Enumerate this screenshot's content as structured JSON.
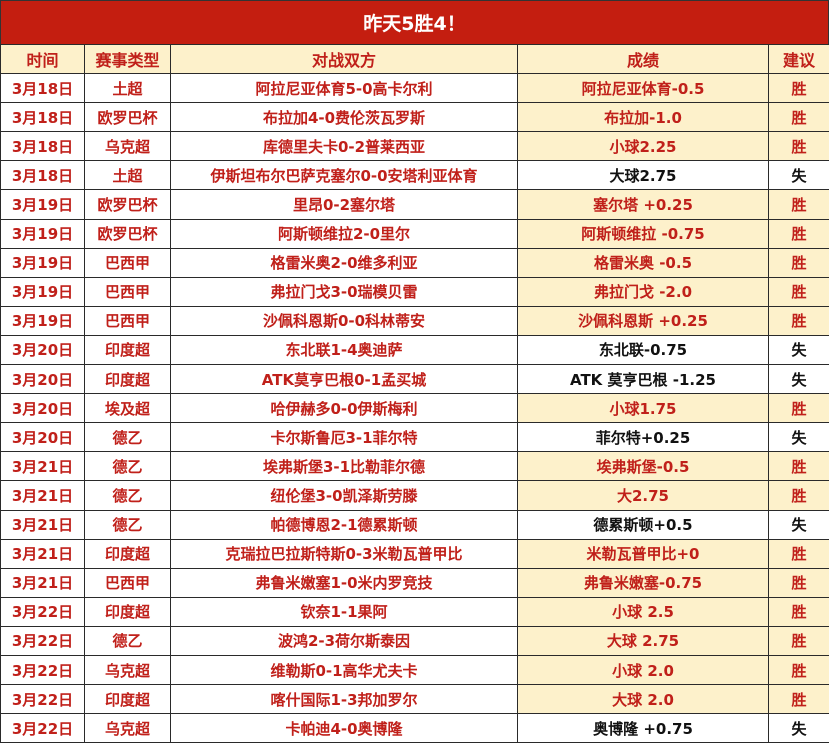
{
  "title": "昨天5胜4！",
  "colors": {
    "title_bg": "#c41e10",
    "header_bg": "#fdf1cb",
    "win_bg": "#fdf1cb",
    "text_red": "#c0201a",
    "loss_text": "#111111"
  },
  "headers": [
    "时间",
    "赛事类型",
    "对战双方",
    "成绩",
    "建议"
  ],
  "rows": [
    {
      "date": "3月18日",
      "league": "土超",
      "match": "阿拉尼亚体育5-0高卡尔利",
      "result": "阿拉尼亚体育-0.5",
      "verdict": "胜"
    },
    {
      "date": "3月18日",
      "league": "欧罗巴杯",
      "match": "布拉加4-0费伦茨瓦罗斯",
      "result": "布拉加-1.0",
      "verdict": "胜"
    },
    {
      "date": "3月18日",
      "league": "乌克超",
      "match": "库德里夫卡0-2普莱西亚",
      "result": "小球2.25",
      "verdict": "胜"
    },
    {
      "date": "3月18日",
      "league": "土超",
      "match": "伊斯坦布尔巴萨克塞尔0-0安塔利亚体育",
      "result": "大球2.75",
      "verdict": "失"
    },
    {
      "date": "3月19日",
      "league": "欧罗巴杯",
      "match": "里昂0-2塞尔塔",
      "result": "塞尔塔 +0.25",
      "verdict": "胜"
    },
    {
      "date": "3月19日",
      "league": "欧罗巴杯",
      "match": "阿斯顿维拉2-0里尔",
      "result": "阿斯顿维拉 -0.75",
      "verdict": "胜"
    },
    {
      "date": "3月19日",
      "league": "巴西甲",
      "match": "格雷米奥2-0维多利亚",
      "result": "格雷米奥 -0.5",
      "verdict": "胜"
    },
    {
      "date": "3月19日",
      "league": "巴西甲",
      "match": "弗拉门戈3-0瑞模贝雷",
      "result": "弗拉门戈 -2.0",
      "verdict": "胜"
    },
    {
      "date": "3月19日",
      "league": "巴西甲",
      "match": "沙佩科恩斯0-0科林蒂安",
      "result": "沙佩科恩斯 +0.25",
      "verdict": "胜"
    },
    {
      "date": "3月20日",
      "league": "印度超",
      "match": "东北联1-4奥迪萨",
      "result": "东北联-0.75",
      "verdict": "失"
    },
    {
      "date": "3月20日",
      "league": "印度超",
      "match": "ATK莫亨巴根0-1孟买城",
      "result": "ATK 莫亨巴根 -1.25",
      "verdict": "失"
    },
    {
      "date": "3月20日",
      "league": "埃及超",
      "match": "哈伊赫多0-0伊斯梅利",
      "result": "小球1.75",
      "verdict": "胜"
    },
    {
      "date": "3月20日",
      "league": "德乙",
      "match": "卡尔斯鲁厄3-1菲尔特",
      "result": "菲尔特+0.25",
      "verdict": "失"
    },
    {
      "date": "3月21日",
      "league": "德乙",
      "match": "埃弗斯堡3-1比勒菲尔德",
      "result": "埃弗斯堡-0.5",
      "verdict": "胜"
    },
    {
      "date": "3月21日",
      "league": "德乙",
      "match": "纽伦堡3-0凯泽斯劳滕",
      "result": "大2.75",
      "verdict": "胜"
    },
    {
      "date": "3月21日",
      "league": "德乙",
      "match": "帕德博恩2-1德累斯顿",
      "result": "德累斯顿+0.5",
      "verdict": "失"
    },
    {
      "date": "3月21日",
      "league": "印度超",
      "match": "克瑞拉巴拉斯特斯0-3米勒瓦普甲比",
      "result": "米勒瓦普甲比+0",
      "verdict": "胜"
    },
    {
      "date": "3月21日",
      "league": "巴西甲",
      "match": "弗鲁米嫩塞1-0米内罗竞技",
      "result": "弗鲁米嫩塞-0.75",
      "verdict": "胜"
    },
    {
      "date": "3月22日",
      "league": "印度超",
      "match": "钦奈1-1果阿",
      "result": "小球 2.5",
      "verdict": "胜"
    },
    {
      "date": "3月22日",
      "league": "德乙",
      "match": "波鸿2-3荷尔斯泰因",
      "result": "大球 2.75",
      "verdict": "胜"
    },
    {
      "date": "3月22日",
      "league": "乌克超",
      "match": "维勒斯0-1高华尤夫卡",
      "result": "小球 2.0",
      "verdict": "胜"
    },
    {
      "date": "3月22日",
      "league": "印度超",
      "match": "喀什国际1-3邦加罗尔",
      "result": "大球 2.0",
      "verdict": "胜"
    },
    {
      "date": "3月22日",
      "league": "乌克超",
      "match": "卡帕迪4-0奥博隆",
      "result": "奥博隆 +0.75",
      "verdict": "失"
    }
  ]
}
